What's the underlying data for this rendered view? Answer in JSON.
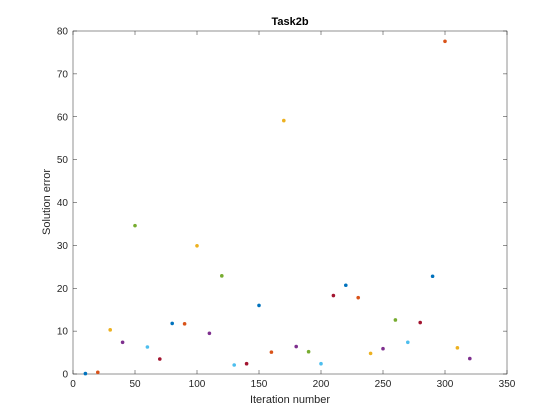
{
  "chart_data": {
    "type": "scatter",
    "title": "Task2b",
    "xlabel": "Iteration number",
    "ylabel": "Solution error",
    "xlim": [
      0,
      350
    ],
    "ylim": [
      0,
      80
    ],
    "xticks": [
      0,
      50,
      100,
      150,
      200,
      250,
      300,
      350
    ],
    "yticks": [
      0,
      10,
      20,
      30,
      40,
      50,
      60,
      70,
      80
    ],
    "grid": false,
    "legend": "none",
    "palette": [
      "#0072BD",
      "#D95319",
      "#EDB120",
      "#7E2F8E",
      "#77AC30",
      "#4DBEEE",
      "#A2142F"
    ],
    "points": [
      {
        "x": 10,
        "y": 0.1
      },
      {
        "x": 20,
        "y": 0.4
      },
      {
        "x": 30,
        "y": 10.3
      },
      {
        "x": 40,
        "y": 7.4
      },
      {
        "x": 50,
        "y": 34.6
      },
      {
        "x": 60,
        "y": 6.3
      },
      {
        "x": 70,
        "y": 3.5
      },
      {
        "x": 80,
        "y": 11.8
      },
      {
        "x": 90,
        "y": 11.7
      },
      {
        "x": 100,
        "y": 29.9
      },
      {
        "x": 110,
        "y": 9.5
      },
      {
        "x": 120,
        "y": 22.9
      },
      {
        "x": 130,
        "y": 2.1
      },
      {
        "x": 140,
        "y": 2.4
      },
      {
        "x": 150,
        "y": 16.0
      },
      {
        "x": 160,
        "y": 5.1
      },
      {
        "x": 170,
        "y": 59.1
      },
      {
        "x": 180,
        "y": 6.4
      },
      {
        "x": 190,
        "y": 5.2
      },
      {
        "x": 200,
        "y": 2.4
      },
      {
        "x": 210,
        "y": 18.3
      },
      {
        "x": 220,
        "y": 20.7
      },
      {
        "x": 230,
        "y": 17.8
      },
      {
        "x": 240,
        "y": 4.8
      },
      {
        "x": 250,
        "y": 5.9
      },
      {
        "x": 260,
        "y": 12.6
      },
      {
        "x": 270,
        "y": 7.4
      },
      {
        "x": 280,
        "y": 12.0
      },
      {
        "x": 290,
        "y": 22.8
      },
      {
        "x": 300,
        "y": 77.6
      },
      {
        "x": 310,
        "y": 6.1
      },
      {
        "x": 320,
        "y": 3.6
      }
    ]
  }
}
